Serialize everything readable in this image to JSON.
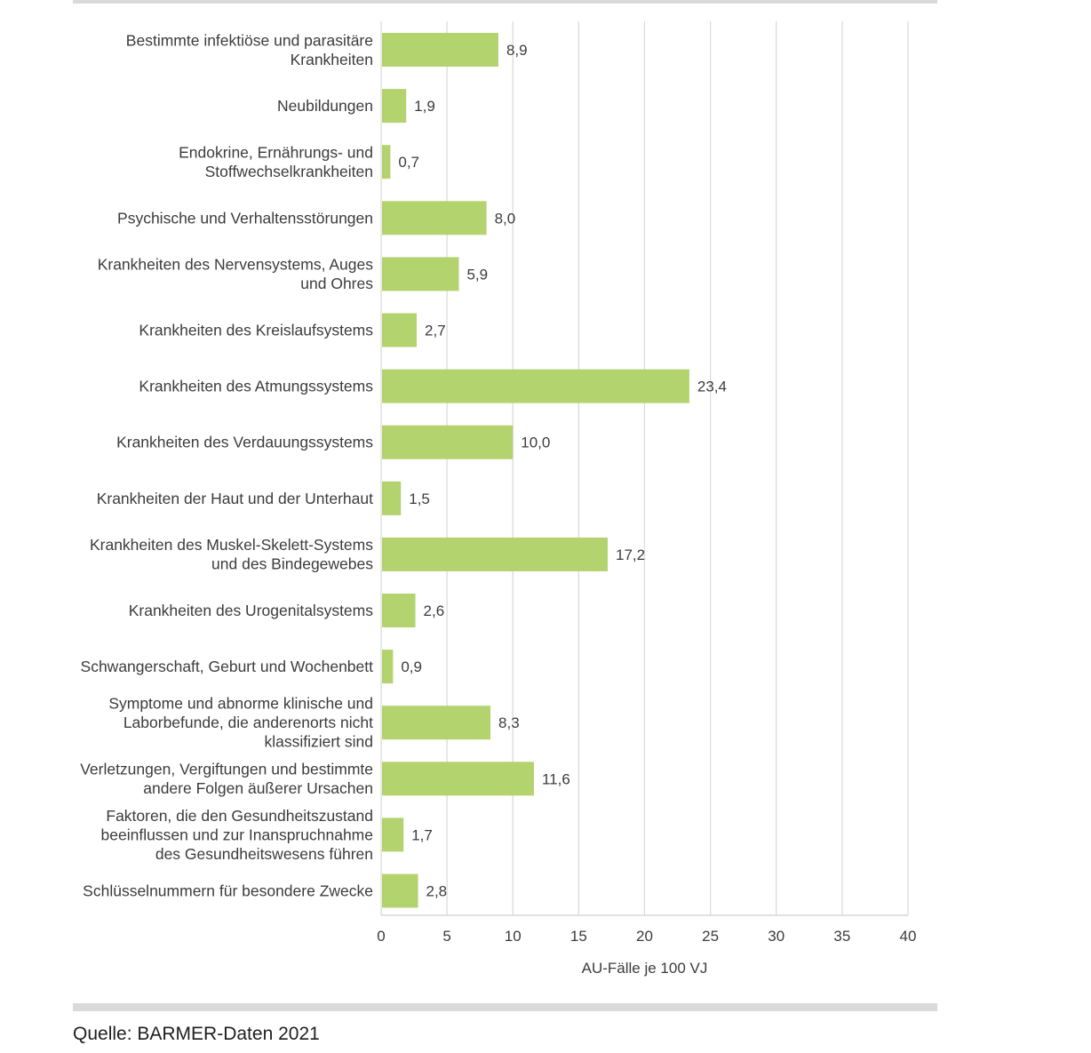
{
  "chart_data": {
    "type": "bar",
    "orientation": "horizontal",
    "categories": [
      "Bestimmte infektiöse und parasitäre Krankheiten",
      "Neubildungen",
      "Endokrine, Ernährungs- und Stoffwechselkrankheiten",
      "Psychische und Verhaltensstörungen",
      "Krankheiten des Nervensystems, Auges und Ohres",
      "Krankheiten des Kreislaufsystems",
      "Krankheiten des Atmungssystems",
      "Krankheiten des Verdauungssystems",
      "Krankheiten der Haut und der Unterhaut",
      "Krankheiten des Muskel-Skelett-Systems und des Bindegewebes",
      "Krankheiten des Urogenitalsystems",
      "Schwangerschaft, Geburt und Wochenbett",
      "Symptome und abnorme klinische und Laborbefunde, die anderenorts nicht klassifiziert sind",
      "Verletzungen, Vergiftungen und bestimmte andere Folgen äußerer Ursachen",
      "Faktoren, die den Gesundheitszustand beeinflussen und zur Inanspruchnahme des Gesundheitswesens führen",
      "Schlüsselnummern für besondere Zwecke"
    ],
    "category_lines": [
      [
        "Bestimmte infektiöse und parasitäre",
        "Krankheiten"
      ],
      [
        "Neubildungen"
      ],
      [
        "Endokrine, Ernährungs- und",
        "Stoffwechselkrankheiten"
      ],
      [
        "Psychische und Verhaltensstörungen"
      ],
      [
        "Krankheiten des Nervensystems, Auges",
        "und Ohres"
      ],
      [
        "Krankheiten des Kreislaufsystems"
      ],
      [
        "Krankheiten des Atmungssystems"
      ],
      [
        "Krankheiten des Verdauungssystems"
      ],
      [
        "Krankheiten der Haut und der Unterhaut"
      ],
      [
        "Krankheiten des Muskel-Skelett-Systems",
        "und des Bindegewebes"
      ],
      [
        "Krankheiten des Urogenitalsystems"
      ],
      [
        "Schwangerschaft, Geburt und Wochenbett"
      ],
      [
        "Symptome und abnorme klinische und",
        "Laborbefunde, die anderenorts nicht",
        "klassifiziert sind"
      ],
      [
        "Verletzungen, Vergiftungen und bestimmte",
        "andere Folgen äußerer Ursachen"
      ],
      [
        "Faktoren, die den Gesundheitszustand",
        "beeinflussen und zur Inanspruchnahme",
        "des Gesundheitswesens führen"
      ],
      [
        "Schlüsselnummern für besondere Zwecke"
      ]
    ],
    "values": [
      8.9,
      1.9,
      0.7,
      8.0,
      5.9,
      2.7,
      23.4,
      10.0,
      1.5,
      17.2,
      2.6,
      0.9,
      8.3,
      11.6,
      1.7,
      2.8
    ],
    "value_labels": [
      "8,9",
      "1,9",
      "0,7",
      "8,0",
      "5,9",
      "2,7",
      "23,4",
      "10,0",
      "1,5",
      "17,2",
      "2,6",
      "0,9",
      "8,3",
      "11,6",
      "1,7",
      "2,8"
    ],
    "xlim": [
      0,
      40
    ],
    "xticks": [
      0,
      5,
      10,
      15,
      20,
      25,
      30,
      35,
      40
    ],
    "xlabel": "AU-Fälle je 100 VJ",
    "ylabel": "",
    "title": "",
    "grid": "vertical",
    "legend": "none",
    "bar_color": "#b2d36e",
    "grid_color": "#d9d9d9"
  },
  "source": "Quelle: BARMER-Daten 2021"
}
